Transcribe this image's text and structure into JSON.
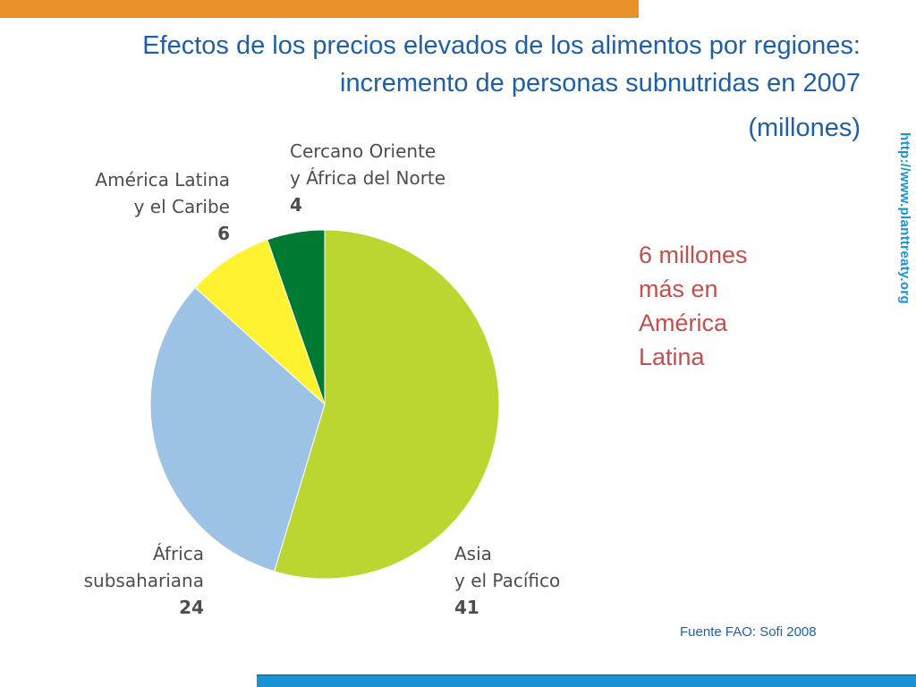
{
  "colors": {
    "title": "#1f5fa6",
    "accent_bar": "#e8912b",
    "bottom_bar": "#1793d4",
    "url": "#1793d4",
    "annotation": "#c0504d",
    "source": "#1f5fa6"
  },
  "header": {
    "title": "Efectos de los precios elevados de los alimentos por regiones: incremento de personas subnutridas en 2007",
    "subtitle": "(millones)"
  },
  "side_url": "http://www.planttreaty.org",
  "annotation": {
    "lines": [
      "6 millones",
      "más en",
      "América",
      "Latina"
    ]
  },
  "source": "Fuente FAO: Sofi 2008",
  "chart_data": {
    "type": "pie",
    "start": "12 o'clock",
    "direction": "clockwise",
    "slices": [
      {
        "label_lines": [
          "Asia",
          "y el Pacífico"
        ],
        "value": 41,
        "color": "#bcd631"
      },
      {
        "label_lines": [
          "África",
          "subsahariana"
        ],
        "value": 24,
        "color": "#9cc3e6"
      },
      {
        "label_lines": [
          "América Latina",
          "y el Caribe"
        ],
        "value": 6,
        "color": "#fff230"
      },
      {
        "label_lines": [
          "Cercano Oriente",
          "y África del Norte"
        ],
        "value": 4,
        "color": "#007a33"
      }
    ]
  }
}
